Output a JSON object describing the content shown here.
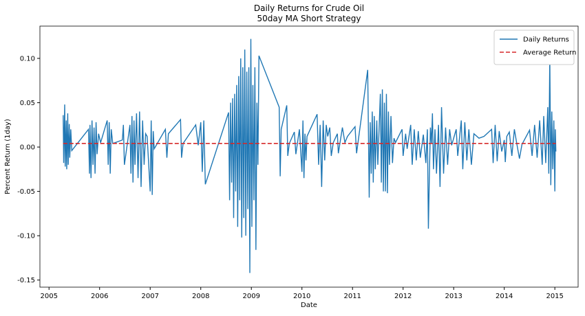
{
  "chart_data": {
    "type": "line",
    "title": "Daily Returns for Crude Oil",
    "subtitle": "50day MA Short Strategy",
    "xlabel": "Date",
    "ylabel": "Percent Return (1day)",
    "xlim": [
      2004.82,
      2015.46
    ],
    "ylim": [
      -0.158,
      0.1364
    ],
    "xticks": [
      2005,
      2006,
      2007,
      2008,
      2009,
      2010,
      2011,
      2012,
      2013,
      2014,
      2015
    ],
    "yticks": [
      -0.15,
      {
        "value": -0.1,
        "label": "-0.10"
      },
      -0.05,
      {
        "value": 0,
        "label": "0.00"
      },
      0.05,
      {
        "value": 0.1,
        "label": "0.10"
      }
    ],
    "grid": false,
    "legend": "upper right",
    "series": [
      {
        "name": "Daily Returns",
        "color": "#1f77b4",
        "linestyle": "solid",
        "x": [
          2005.28,
          2005.29,
          2005.31,
          2005.32,
          2005.34,
          2005.35,
          2005.37,
          2005.38,
          2005.4,
          2005.41,
          2005.43,
          2005.45,
          2005.78,
          2005.8,
          2005.81,
          2005.83,
          2005.85,
          2005.87,
          2005.89,
          2005.91,
          2005.93,
          2005.95,
          2005.98,
          2006.02,
          2006.15,
          2006.17,
          2006.19,
          2006.21,
          2006.23,
          2006.26,
          2006.45,
          2006.47,
          2006.49,
          2006.6,
          2006.62,
          2006.64,
          2006.66,
          2006.68,
          2006.7,
          2006.73,
          2006.76,
          2006.79,
          2006.82,
          2006.85,
          2006.88,
          2006.91,
          2006.94,
          2007.0,
          2007.02,
          2007.04,
          2007.06,
          2007.08,
          2007.3,
          2007.33,
          2007.36,
          2007.6,
          2007.62,
          2007.65,
          2007.9,
          2007.95,
          2008.0,
          2008.03,
          2008.06,
          2008.09,
          2008.55,
          2008.57,
          2008.59,
          2008.61,
          2008.63,
          2008.65,
          2008.67,
          2008.69,
          2008.71,
          2008.73,
          2008.75,
          2008.77,
          2008.79,
          2008.81,
          2008.83,
          2008.85,
          2008.87,
          2008.89,
          2008.91,
          2008.93,
          2008.95,
          2008.97,
          2008.99,
          2009.01,
          2009.03,
          2009.05,
          2009.07,
          2009.09,
          2009.11,
          2009.13,
          2009.15,
          2009.55,
          2009.57,
          2009.59,
          2009.7,
          2009.72,
          2009.75,
          2009.85,
          2009.88,
          2009.95,
          2010.0,
          2010.02,
          2010.04,
          2010.06,
          2010.08,
          2010.1,
          2010.3,
          2010.33,
          2010.36,
          2010.39,
          2010.42,
          2010.45,
          2010.48,
          2010.51,
          2010.55,
          2010.58,
          2010.62,
          2010.7,
          2010.72,
          2010.8,
          2010.85,
          2010.9,
          2011.05,
          2011.08,
          2011.3,
          2011.33,
          2011.35,
          2011.37,
          2011.39,
          2011.41,
          2011.43,
          2011.45,
          2011.48,
          2011.5,
          2011.55,
          2011.57,
          2011.59,
          2011.61,
          2011.63,
          2011.65,
          2011.67,
          2011.69,
          2011.71,
          2011.73,
          2011.76,
          2011.79,
          2011.82,
          2011.85,
          2011.98,
          2012.0,
          2012.05,
          2012.08,
          2012.15,
          2012.18,
          2012.22,
          2012.26,
          2012.3,
          2012.34,
          2012.4,
          2012.45,
          2012.48,
          2012.5,
          2012.52,
          2012.54,
          2012.56,
          2012.58,
          2012.6,
          2012.63,
          2012.66,
          2012.7,
          2012.73,
          2012.76,
          2012.8,
          2012.84,
          2012.88,
          2012.92,
          2012.96,
          2013.05,
          2013.08,
          2013.15,
          2013.18,
          2013.22,
          2013.26,
          2013.3,
          2013.35,
          2013.4,
          2013.5,
          2013.6,
          2013.75,
          2013.78,
          2013.82,
          2013.86,
          2013.9,
          2013.95,
          2014.0,
          2014.02,
          2014.05,
          2014.1,
          2014.15,
          2014.2,
          2014.25,
          2014.3,
          2014.35,
          2014.5,
          2014.55,
          2014.6,
          2014.65,
          2014.7,
          2014.75,
          2014.78,
          2014.82,
          2014.86,
          2014.88,
          2014.9,
          2014.92,
          2014.94,
          2014.96,
          2014.98,
          2015.0,
          2015.01,
          2015.02
        ],
        "values": [
          0.036,
          -0.018,
          0.048,
          -0.022,
          0.03,
          -0.025,
          0.038,
          -0.02,
          0.026,
          -0.012,
          0.02,
          -0.004,
          0.02,
          -0.03,
          0.025,
          -0.035,
          0.03,
          -0.02,
          0.022,
          -0.03,
          0.028,
          -0.008,
          0.015,
          0.005,
          0.03,
          -0.02,
          0.028,
          -0.03,
          0.02,
          0.004,
          0.008,
          0.025,
          -0.02,
          0.025,
          -0.03,
          0.035,
          -0.04,
          0.03,
          -0.02,
          0.038,
          -0.035,
          0.04,
          -0.045,
          0.03,
          -0.02,
          0.015,
          0.012,
          -0.05,
          0.03,
          -0.054,
          0.018,
          -0.002,
          0.02,
          -0.012,
          0.015,
          0.031,
          -0.012,
          0.004,
          0.025,
          0.002,
          0.028,
          -0.028,
          0.03,
          -0.042,
          0.039,
          -0.06,
          0.05,
          -0.04,
          0.055,
          -0.08,
          0.06,
          -0.05,
          0.07,
          -0.09,
          0.08,
          -0.06,
          0.1,
          -0.102,
          0.09,
          -0.08,
          0.11,
          -0.1,
          0.085,
          -0.07,
          0.09,
          -0.142,
          0.122,
          -0.09,
          0.07,
          -0.06,
          0.09,
          -0.116,
          0.05,
          -0.02,
          0.103,
          0.045,
          -0.033,
          0.02,
          0.047,
          -0.01,
          0.004,
          0.017,
          -0.008,
          0.02,
          -0.028,
          0.03,
          -0.035,
          0.015,
          -0.015,
          0.012,
          0.037,
          -0.02,
          0.025,
          -0.045,
          0.03,
          -0.015,
          0.025,
          0.012,
          0.022,
          -0.01,
          0.005,
          0.015,
          -0.007,
          0.022,
          0.005,
          0.012,
          0.023,
          -0.007,
          0.087,
          -0.057,
          0.028,
          -0.03,
          0.04,
          -0.04,
          0.035,
          -0.025,
          0.03,
          -0.02,
          0.06,
          -0.04,
          0.065,
          -0.05,
          0.05,
          -0.05,
          0.06,
          -0.052,
          0.04,
          -0.02,
          0.035,
          -0.018,
          0.01,
          0.005,
          0.02,
          -0.01,
          0.015,
          -0.002,
          0.025,
          -0.02,
          0.02,
          -0.015,
          0.018,
          -0.012,
          0.014,
          -0.018,
          0.02,
          -0.092,
          -0.03,
          0.022,
          0.004,
          0.038,
          -0.025,
          0.02,
          -0.03,
          0.025,
          -0.045,
          0.045,
          -0.03,
          0.022,
          -0.02,
          0.02,
          0.002,
          0.02,
          -0.01,
          0.03,
          -0.025,
          0.028,
          -0.015,
          0.02,
          -0.02,
          0.015,
          0.01,
          0.012,
          0.02,
          -0.018,
          0.025,
          -0.016,
          0.018,
          -0.005,
          0.008,
          -0.017,
          0.012,
          0.017,
          -0.01,
          0.02,
          0.003,
          -0.013,
          0.003,
          0.019,
          -0.01,
          0.025,
          -0.012,
          0.03,
          -0.02,
          0.035,
          -0.018,
          0.045,
          -0.03,
          0.102,
          -0.043,
          0.04,
          -0.025,
          0.03,
          -0.05,
          0.02,
          -0.005
        ]
      },
      {
        "name": "Average Return",
        "color": "#d62728",
        "linestyle": "dashed",
        "x": [
          2005.28,
          2015.02
        ],
        "values": [
          0.0041,
          0.0041
        ]
      }
    ]
  }
}
